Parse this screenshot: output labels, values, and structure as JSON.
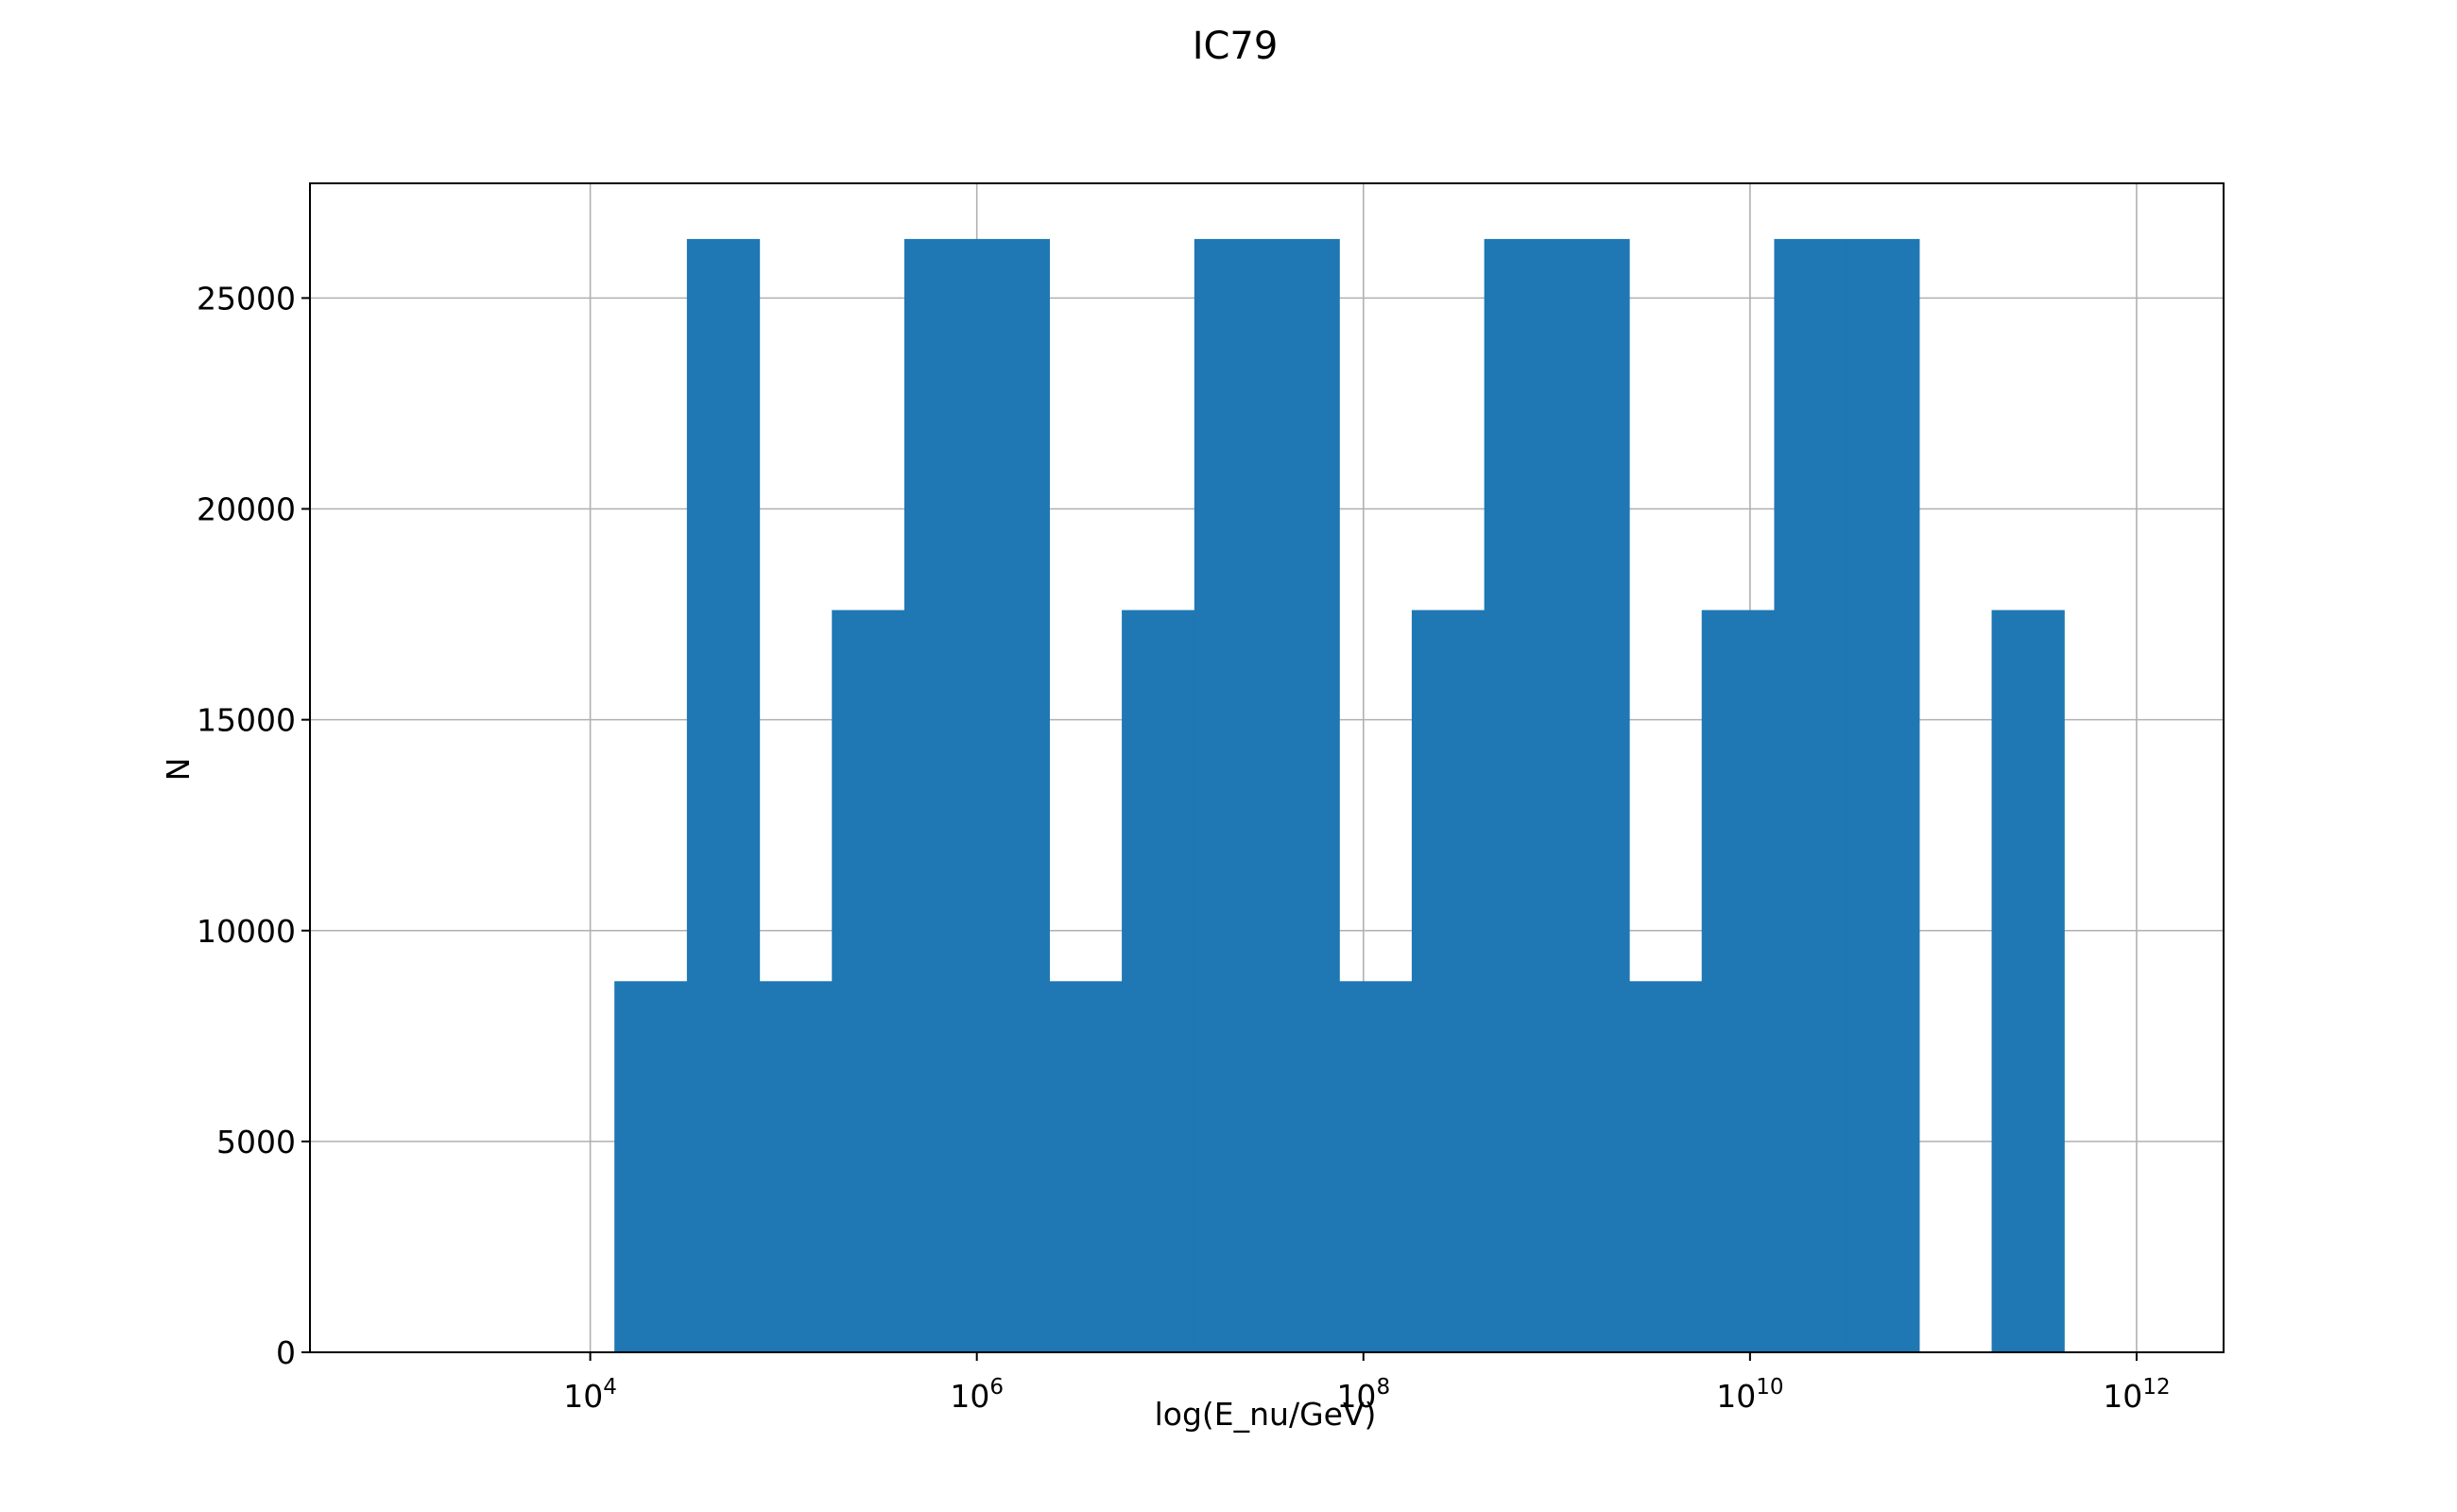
{
  "chart_data": {
    "type": "bar",
    "title": "IC79",
    "xlabel": "log(E_nu/GeV)",
    "ylabel": "N",
    "x_scale": "log",
    "xlim_exp": [
      2.55,
      12.45
    ],
    "ylim": [
      0,
      27720
    ],
    "grid": true,
    "color": "#1f77b4",
    "x_ticks": [
      {
        "base": "10",
        "exp": "4",
        "value": 4
      },
      {
        "base": "10",
        "exp": "6",
        "value": 6
      },
      {
        "base": "10",
        "exp": "8",
        "value": 8
      },
      {
        "base": "10",
        "exp": "10",
        "value": 10
      },
      {
        "base": "10",
        "exp": "12",
        "value": 12
      }
    ],
    "y_ticks": [
      {
        "label": "0",
        "value": 0
      },
      {
        "label": "5000",
        "value": 5000
      },
      {
        "label": "10000",
        "value": 10000
      },
      {
        "label": "15000",
        "value": 15000
      },
      {
        "label": "20000",
        "value": 20000
      },
      {
        "label": "25000",
        "value": 25000
      }
    ],
    "bin_edges_log10": [
      4.125,
      4.5,
      4.875,
      5.25,
      5.625,
      6.0,
      6.375,
      6.75,
      7.125,
      7.5,
      7.875,
      8.25,
      8.625,
      9.0,
      9.375,
      9.75,
      10.125,
      10.5,
      10.875,
      11.25,
      11.625
    ],
    "counts": [
      8800,
      26400,
      8800,
      17600,
      26400,
      26400,
      8800,
      17600,
      26400,
      26400,
      8800,
      17600,
      26400,
      26400,
      8800,
      17600,
      26400,
      26400,
      0,
      17600
    ]
  }
}
